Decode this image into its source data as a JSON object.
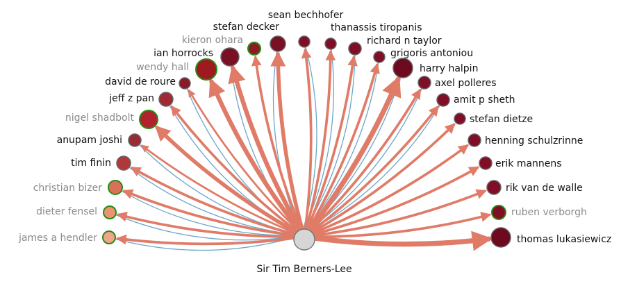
{
  "center": {
    "name": "Sir Tim Berners-Lee",
    "fill": "#d6d6d6",
    "stroke": "#777777"
  },
  "colors": {
    "out_edge": "#e07b67",
    "in_edge": "#6aa6c8",
    "node_stroke_default": "#666666",
    "node_stroke_highlight": "#2a8a14",
    "label_dim": "#8a8a8a",
    "label_normal": "#111111"
  },
  "nodes": [
    {
      "name": "james a hendler",
      "fill": "#f0a48a",
      "highlight": true,
      "dim": true,
      "weight": 3,
      "inbound": true
    },
    {
      "name": "dieter fensel",
      "fill": "#ec9370",
      "highlight": true,
      "dim": true,
      "weight": 3,
      "inbound": true
    },
    {
      "name": "christian bizer",
      "fill": "#d9705a",
      "highlight": true,
      "dim": true,
      "weight": 3,
      "inbound": true
    },
    {
      "name": "tim finin",
      "fill": "#b03838",
      "highlight": false,
      "dim": false,
      "weight": 3,
      "inbound": true
    },
    {
      "name": "anupam joshi",
      "fill": "#9a2b35",
      "highlight": false,
      "dim": false,
      "weight": 2,
      "inbound": true
    },
    {
      "name": "nigel shadbolt",
      "fill": "#b0232c",
      "highlight": true,
      "dim": true,
      "weight": 5,
      "inbound": false
    },
    {
      "name": "jeff z pan",
      "fill": "#a02a34",
      "highlight": false,
      "dim": false,
      "weight": 3,
      "inbound": true
    },
    {
      "name": "david de roure",
      "fill": "#8a1a28",
      "highlight": false,
      "dim": false,
      "weight": 2,
      "inbound": true
    },
    {
      "name": "wendy hall",
      "fill": "#9e1a20",
      "highlight": true,
      "dim": true,
      "weight": 6,
      "inbound": false
    },
    {
      "name": "ian horrocks",
      "fill": "#7a1024",
      "highlight": false,
      "dim": false,
      "weight": 6,
      "inbound": true
    },
    {
      "name": "kieron ohara",
      "fill": "#8e1a28",
      "highlight": true,
      "dim": true,
      "weight": 3,
      "inbound": false
    },
    {
      "name": "stefan decker",
      "fill": "#7a1024",
      "highlight": false,
      "dim": false,
      "weight": 5,
      "inbound": true
    },
    {
      "name": "sean bechhofer",
      "fill": "#800e26",
      "highlight": false,
      "dim": false,
      "weight": 3,
      "inbound": true
    },
    {
      "name": "thanassis tiropanis",
      "fill": "#800e26",
      "highlight": false,
      "dim": false,
      "weight": 3,
      "inbound": true
    },
    {
      "name": "richard n taylor",
      "fill": "#800e26",
      "highlight": false,
      "dim": false,
      "weight": 3,
      "inbound": true
    },
    {
      "name": "grigoris antoniou",
      "fill": "#800e26",
      "highlight": false,
      "dim": false,
      "weight": 3,
      "inbound": true
    },
    {
      "name": "harry halpin",
      "fill": "#6e0a20",
      "highlight": false,
      "dim": false,
      "weight": 7,
      "inbound": true
    },
    {
      "name": "axel polleres",
      "fill": "#800e26",
      "highlight": false,
      "dim": false,
      "weight": 3,
      "inbound": true
    },
    {
      "name": "amit p sheth",
      "fill": "#800e26",
      "highlight": false,
      "dim": false,
      "weight": 3,
      "inbound": true
    },
    {
      "name": "stefan dietze",
      "fill": "#800e26",
      "highlight": false,
      "dim": false,
      "weight": 3,
      "inbound": false
    },
    {
      "name": "henning schulzrinne",
      "fill": "#800e26",
      "highlight": false,
      "dim": false,
      "weight": 3,
      "inbound": false
    },
    {
      "name": "erik mannens",
      "fill": "#800e26",
      "highlight": false,
      "dim": false,
      "weight": 3,
      "inbound": false
    },
    {
      "name": "rik van de walle",
      "fill": "#800e26",
      "highlight": false,
      "dim": false,
      "weight": 3,
      "inbound": false
    },
    {
      "name": "ruben verborgh",
      "fill": "#800e26",
      "highlight": true,
      "dim": true,
      "weight": 3,
      "inbound": false
    },
    {
      "name": "thomas lukasiewicz",
      "fill": "#6e0a20",
      "highlight": false,
      "dim": false,
      "weight": 7,
      "inbound": false
    }
  ]
}
